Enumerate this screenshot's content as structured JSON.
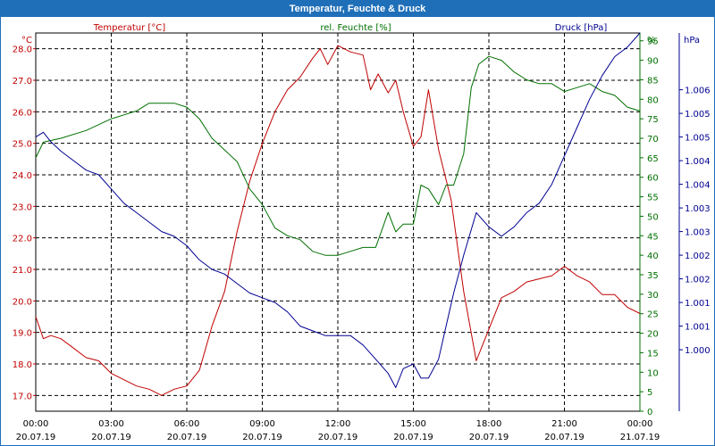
{
  "window": {
    "title": "Temperatur, Feuchte & Druck"
  },
  "chart_data": {
    "type": "line",
    "title": "Temperatur, Feuchte & Druck",
    "x": {
      "unit": "hours since 20.07.19 00:00",
      "range": [
        0,
        24
      ],
      "ticks": [
        {
          "t": 0,
          "time": "00:00",
          "date": "20.07.19"
        },
        {
          "t": 3,
          "time": "03:00",
          "date": "20.07.19"
        },
        {
          "t": 6,
          "time": "06:00",
          "date": "20.07.19"
        },
        {
          "t": 9,
          "time": "09:00",
          "date": "20.07.19"
        },
        {
          "t": 12,
          "time": "12:00",
          "date": "20.07.19"
        },
        {
          "t": 15,
          "time": "15:00",
          "date": "20.07.19"
        },
        {
          "t": 18,
          "time": "18:00",
          "date": "20.07.19"
        },
        {
          "t": 21,
          "time": "21:00",
          "date": "20.07.19"
        },
        {
          "t": 24,
          "time": "00:00",
          "date": "21.07.19"
        }
      ]
    },
    "axes": {
      "temperature": {
        "label": "Temperatur [°C]",
        "unit": "°C",
        "color": "#c00000",
        "range": [
          16.5,
          28.5
        ],
        "ticks": [
          "17.0",
          "18.0",
          "19.0",
          "20.0",
          "21.0",
          "22.0",
          "23.0",
          "24.0",
          "25.0",
          "26.0",
          "27.0",
          "28.0"
        ]
      },
      "humidity": {
        "label": "rel. Feuchte [%]",
        "unit": "%",
        "color": "#007000",
        "range": [
          0,
          97
        ],
        "ticks": [
          "0",
          "5",
          "10",
          "15",
          "20",
          "25",
          "30",
          "35",
          "40",
          "45",
          "50",
          "55",
          "60",
          "65",
          "70",
          "75",
          "80",
          "85",
          "90",
          "95"
        ]
      },
      "pressure": {
        "label": "Druck [hPa]",
        "unit": "hPa",
        "color": "#000090",
        "range": [
          0.9987,
          1.0067
        ],
        "ticks": [
          "1.000",
          "1.001",
          "1.001",
          "1.002",
          "1.002",
          "1.003",
          "1.003",
          "1.004",
          "1.004",
          "1.005",
          "1.005",
          "1.006"
        ]
      }
    },
    "series": [
      {
        "name": "Temperatur [°C]",
        "axis": "temperature",
        "color": "#c00000",
        "points": [
          [
            0,
            19.5
          ],
          [
            0.3,
            18.8
          ],
          [
            0.6,
            18.9
          ],
          [
            1,
            18.8
          ],
          [
            1.5,
            18.5
          ],
          [
            2,
            18.2
          ],
          [
            2.5,
            18.1
          ],
          [
            3,
            17.7
          ],
          [
            3.5,
            17.5
          ],
          [
            4,
            17.3
          ],
          [
            4.5,
            17.2
          ],
          [
            5,
            17.0
          ],
          [
            5.5,
            17.2
          ],
          [
            6,
            17.3
          ],
          [
            6.5,
            17.8
          ],
          [
            7,
            19.2
          ],
          [
            7.5,
            20.3
          ],
          [
            8,
            22.2
          ],
          [
            8.5,
            23.8
          ],
          [
            9,
            25.0
          ],
          [
            9.5,
            26.0
          ],
          [
            10,
            26.7
          ],
          [
            10.5,
            27.1
          ],
          [
            11,
            27.7
          ],
          [
            11.3,
            28.0
          ],
          [
            11.6,
            27.5
          ],
          [
            12,
            28.1
          ],
          [
            12.5,
            27.9
          ],
          [
            13,
            27.8
          ],
          [
            13.3,
            26.7
          ],
          [
            13.6,
            27.2
          ],
          [
            14,
            26.6
          ],
          [
            14.3,
            27.0
          ],
          [
            14.6,
            26.0
          ],
          [
            15,
            24.9
          ],
          [
            15.3,
            25.2
          ],
          [
            15.6,
            26.7
          ],
          [
            16,
            24.8
          ],
          [
            16.5,
            23.2
          ],
          [
            17,
            20.3
          ],
          [
            17.5,
            18.1
          ],
          [
            18,
            19.1
          ],
          [
            18.5,
            20.1
          ],
          [
            19,
            20.3
          ],
          [
            19.5,
            20.6
          ],
          [
            20,
            20.7
          ],
          [
            20.5,
            20.8
          ],
          [
            21,
            21.1
          ],
          [
            21.5,
            20.8
          ],
          [
            22,
            20.6
          ],
          [
            22.5,
            20.2
          ],
          [
            23,
            20.2
          ],
          [
            23.5,
            19.8
          ],
          [
            24,
            19.6
          ]
        ]
      },
      {
        "name": "rel. Feuchte [%]",
        "axis": "humidity",
        "color": "#007000",
        "points": [
          [
            0,
            65
          ],
          [
            0.3,
            69
          ],
          [
            1,
            70
          ],
          [
            2,
            72
          ],
          [
            3,
            75
          ],
          [
            3.5,
            76
          ],
          [
            4,
            77
          ],
          [
            4.5,
            79
          ],
          [
            5,
            79
          ],
          [
            5.5,
            79
          ],
          [
            6,
            78
          ],
          [
            6.5,
            75
          ],
          [
            7,
            70
          ],
          [
            7.5,
            67
          ],
          [
            8,
            64
          ],
          [
            8.5,
            57
          ],
          [
            9,
            53
          ],
          [
            9.5,
            47
          ],
          [
            10,
            45
          ],
          [
            10.5,
            44
          ],
          [
            11,
            41
          ],
          [
            11.5,
            40
          ],
          [
            12,
            40
          ],
          [
            12.5,
            41
          ],
          [
            13,
            42
          ],
          [
            13.5,
            42
          ],
          [
            14,
            51
          ],
          [
            14.3,
            46
          ],
          [
            14.6,
            48
          ],
          [
            15,
            48
          ],
          [
            15.3,
            58
          ],
          [
            15.6,
            57
          ],
          [
            16,
            53
          ],
          [
            16.3,
            58
          ],
          [
            16.6,
            58
          ],
          [
            17,
            66
          ],
          [
            17.3,
            83
          ],
          [
            17.6,
            89
          ],
          [
            18,
            91
          ],
          [
            18.5,
            90
          ],
          [
            19,
            87
          ],
          [
            19.5,
            85
          ],
          [
            20,
            84
          ],
          [
            20.5,
            84
          ],
          [
            21,
            82
          ],
          [
            21.5,
            83
          ],
          [
            22,
            84
          ],
          [
            22.5,
            82
          ],
          [
            23,
            81
          ],
          [
            23.5,
            78
          ],
          [
            24,
            77
          ]
        ]
      },
      {
        "name": "Druck [hPa]",
        "axis": "pressure",
        "color": "#000090",
        "points": [
          [
            0,
            1.0045
          ],
          [
            0.3,
            1.0046
          ],
          [
            0.6,
            1.0044
          ],
          [
            1,
            1.0042
          ],
          [
            1.5,
            1.004
          ],
          [
            2,
            1.0038
          ],
          [
            2.5,
            1.0037
          ],
          [
            3,
            1.0034
          ],
          [
            3.5,
            1.0031
          ],
          [
            4,
            1.0029
          ],
          [
            4.5,
            1.0027
          ],
          [
            5,
            1.0025
          ],
          [
            5.5,
            1.0024
          ],
          [
            6,
            1.0022
          ],
          [
            6.5,
            1.0019
          ],
          [
            7,
            1.0017
          ],
          [
            7.5,
            1.0016
          ],
          [
            8,
            1.0014
          ],
          [
            8.5,
            1.0012
          ],
          [
            9,
            1.0011
          ],
          [
            9.5,
            1.001
          ],
          [
            10,
            1.0008
          ],
          [
            10.5,
            1.0005
          ],
          [
            11,
            1.0004
          ],
          [
            11.5,
            1.0003
          ],
          [
            12,
            1.0003
          ],
          [
            12.5,
            1.0003
          ],
          [
            13,
            1.0001
          ],
          [
            13.5,
            0.9998
          ],
          [
            14,
            0.9995
          ],
          [
            14.3,
            0.9992
          ],
          [
            14.6,
            0.9996
          ],
          [
            15,
            0.9997
          ],
          [
            15.3,
            0.9994
          ],
          [
            15.6,
            0.9994
          ],
          [
            16,
            0.9998
          ],
          [
            16.3,
            1.0005
          ],
          [
            16.6,
            1.0012
          ],
          [
            17,
            1.002
          ],
          [
            17.5,
            1.0029
          ],
          [
            18,
            1.0026
          ],
          [
            18.5,
            1.0024
          ],
          [
            19,
            1.0026
          ],
          [
            19.5,
            1.0029
          ],
          [
            20,
            1.0031
          ],
          [
            20.5,
            1.0035
          ],
          [
            21,
            1.0041
          ],
          [
            21.5,
            1.0047
          ],
          [
            22,
            1.0053
          ],
          [
            22.5,
            1.0058
          ],
          [
            23,
            1.0062
          ],
          [
            23.5,
            1.0064
          ],
          [
            24,
            1.0067
          ]
        ]
      }
    ]
  }
}
